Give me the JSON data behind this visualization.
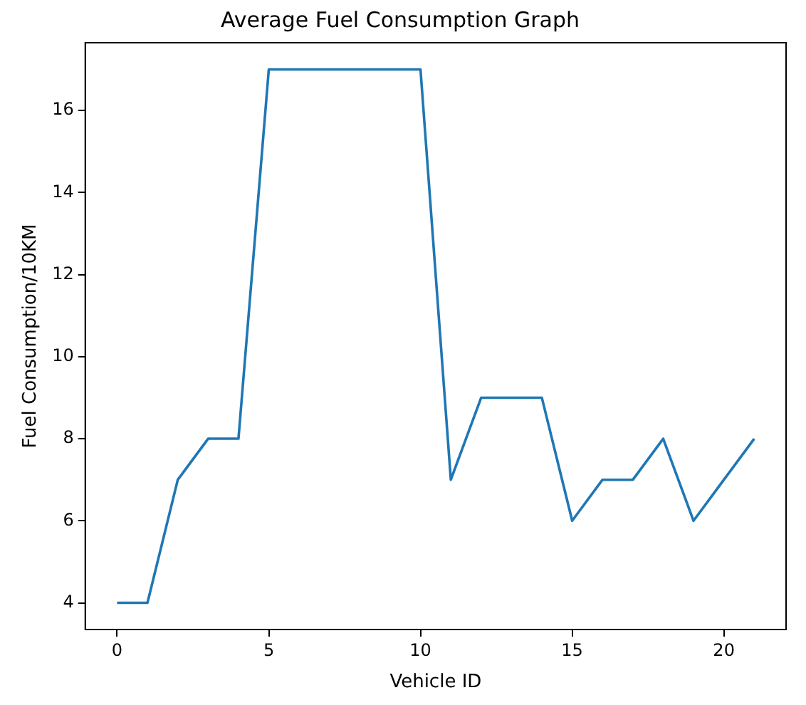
{
  "chart_data": {
    "type": "line",
    "title": "Average Fuel Consumption Graph",
    "xlabel": "Vehicle ID",
    "ylabel": "Fuel Consumption/10KM",
    "x": [
      0,
      1,
      2,
      3,
      4,
      5,
      6,
      7,
      8,
      9,
      10,
      11,
      12,
      13,
      14,
      15,
      16,
      17,
      18,
      19,
      20,
      21
    ],
    "series": [
      {
        "color": "#1f77b4",
        "values": [
          4,
          4,
          7,
          8,
          8,
          17,
          17,
          17,
          17,
          17,
          17,
          7,
          9,
          9,
          9,
          6,
          7,
          7,
          8,
          6,
          7,
          8
        ]
      }
    ],
    "xlim": [
      -1.05,
      22.05
    ],
    "xticks": [
      0,
      5,
      10,
      15,
      20
    ],
    "ylim": [
      3.35,
      17.65
    ],
    "yticks": [
      4,
      6,
      8,
      10,
      12,
      14,
      16
    ],
    "grid": false,
    "legend": false,
    "marker": "none",
    "line_style": "solid"
  }
}
